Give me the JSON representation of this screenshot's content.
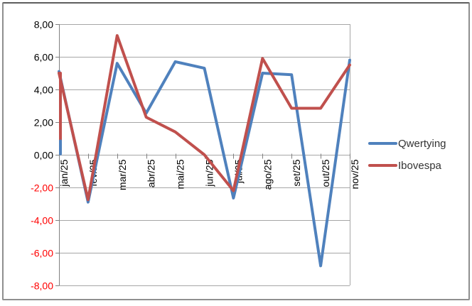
{
  "chart_data": {
    "type": "line",
    "categories": [
      "jan/25",
      "fev/25",
      "mar/25",
      "abr/25",
      "mai/25",
      "jun/25",
      "jul/25",
      "ago/25",
      "set/25",
      "out/25",
      "nov/25"
    ],
    "series": [
      {
        "name": "Qwertying",
        "color": "#4F81BD",
        "values": [
          5.1,
          -2.9,
          5.6,
          2.55,
          5.7,
          5.3,
          -2.65,
          5.0,
          4.9,
          -6.8,
          5.8
        ]
      },
      {
        "name": "Ibovespa",
        "color": "#C0504D",
        "values": [
          5.0,
          -2.75,
          7.3,
          2.3,
          1.4,
          0.0,
          -2.2,
          5.9,
          2.85,
          2.85,
          5.5
        ]
      }
    ],
    "y_ticks": [
      {
        "label": "8,00",
        "value": 8
      },
      {
        "label": "6,00",
        "value": 6
      },
      {
        "label": "4,00",
        "value": 4
      },
      {
        "label": "2,00",
        "value": 2
      },
      {
        "label": "0,00",
        "value": 0
      },
      {
        "label": "-2,00",
        "value": -2
      },
      {
        "label": "-4,00",
        "value": -4
      },
      {
        "label": "-6,00",
        "value": -6
      },
      {
        "label": "-8,00",
        "value": -8
      }
    ],
    "ylim": [
      -8,
      8
    ],
    "grid": true,
    "legend_position": "right",
    "x_labels_rotated_degrees": 90,
    "colors": {
      "gridline": "#A6A6A6",
      "axis": "#808080",
      "tick_label": "#000000",
      "negative_tick_label": "#FF0000",
      "legend_text": "#333333",
      "frame_border": "#8F8F8F"
    },
    "axis_overlay_segments": [
      {
        "series": "Ibovespa",
        "color": "#C0504D",
        "from": 5.0,
        "to": 0.85
      },
      {
        "series": "Qwertying",
        "color": "#4F81BD",
        "from": 0.85,
        "to": 0.05
      }
    ]
  }
}
